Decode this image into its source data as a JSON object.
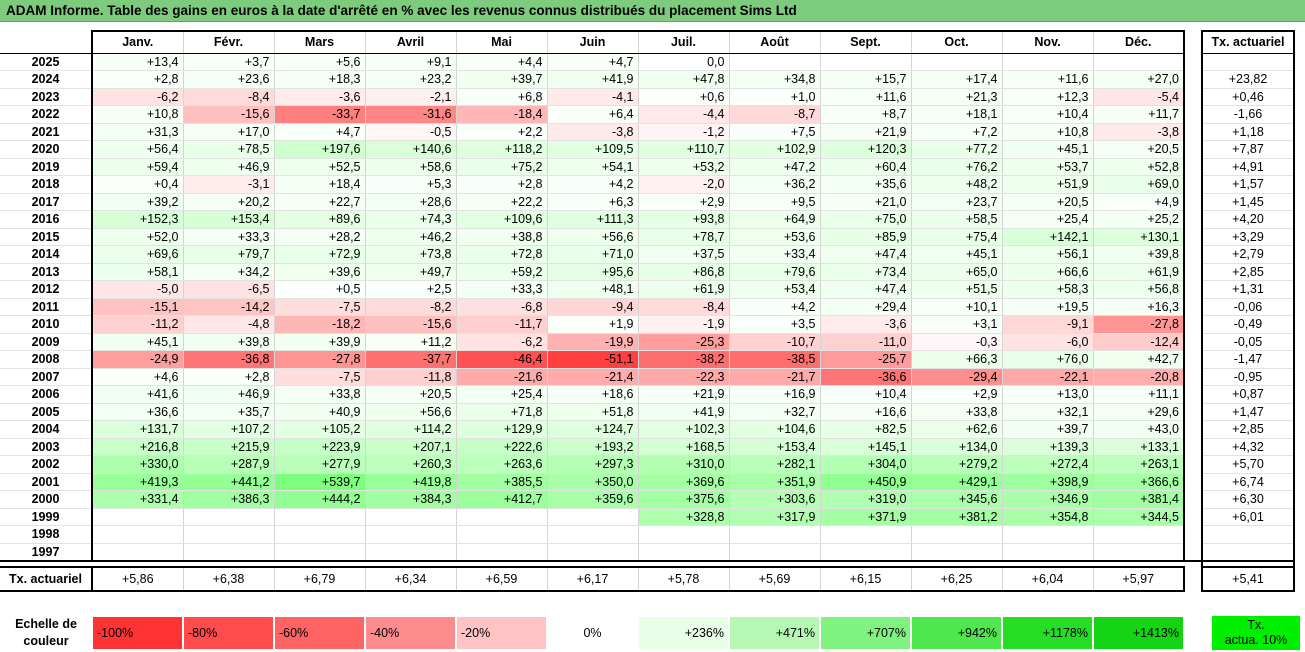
{
  "title": "ADAM Informe. Table des gains en euros à la date d'arrêté en % avec les revenus connus distribués du placement Sims Ltd",
  "months": [
    "Janv.",
    "Févr.",
    "Mars",
    "Avril",
    "Mai",
    "Juin",
    "Juil.",
    "Août",
    "Sept.",
    "Oct.",
    "Nov.",
    "Déc."
  ],
  "actuarial_header": "Tx. actuariel",
  "rows": [
    {
      "year": "2025",
      "values": [
        "+13,4",
        "+3,7",
        "+5,6",
        "+9,1",
        "+4,4",
        "+4,7",
        "0,0",
        "",
        "",
        "",
        "",
        ""
      ],
      "actuarial": ""
    },
    {
      "year": "2024",
      "values": [
        "+2,8",
        "+23,6",
        "+18,3",
        "+23,2",
        "+39,7",
        "+41,9",
        "+47,8",
        "+34,8",
        "+15,7",
        "+17,4",
        "+11,6",
        "+27,0"
      ],
      "actuarial": "+23,82"
    },
    {
      "year": "2023",
      "values": [
        "-6,2",
        "-8,4",
        "-3,6",
        "-2,1",
        "+6,8",
        "-4,1",
        "+0,6",
        "+1,0",
        "+11,6",
        "+21,3",
        "+12,3",
        "-5,4"
      ],
      "actuarial": "+0,46"
    },
    {
      "year": "2022",
      "values": [
        "+10,8",
        "-15,6",
        "-33,7",
        "-31,6",
        "-18,4",
        "+6,4",
        "-4,4",
        "-8,7",
        "+8,7",
        "+18,1",
        "+10,4",
        "+11,7"
      ],
      "actuarial": "-1,66"
    },
    {
      "year": "2021",
      "values": [
        "+31,3",
        "+17,0",
        "+4,7",
        "-0,5",
        "+2,2",
        "-3,8",
        "-1,2",
        "+7,5",
        "+21,9",
        "+7,2",
        "+10,8",
        "-3,8"
      ],
      "actuarial": "+1,18"
    },
    {
      "year": "2020",
      "values": [
        "+56,4",
        "+78,5",
        "+197,6",
        "+140,6",
        "+118,2",
        "+109,5",
        "+110,7",
        "+102,9",
        "+120,3",
        "+77,2",
        "+45,1",
        "+20,5"
      ],
      "actuarial": "+7,87"
    },
    {
      "year": "2019",
      "values": [
        "+59,4",
        "+46,9",
        "+52,5",
        "+58,6",
        "+75,2",
        "+54,1",
        "+53,2",
        "+47,2",
        "+60,4",
        "+76,2",
        "+53,7",
        "+52,8"
      ],
      "actuarial": "+4,91"
    },
    {
      "year": "2018",
      "values": [
        "+0,4",
        "-3,1",
        "+18,4",
        "+5,3",
        "+2,8",
        "+4,2",
        "-2,0",
        "+36,2",
        "+35,6",
        "+48,2",
        "+51,9",
        "+69,0"
      ],
      "actuarial": "+1,57"
    },
    {
      "year": "2017",
      "values": [
        "+39,2",
        "+20,2",
        "+22,7",
        "+28,6",
        "+22,2",
        "+6,3",
        "+2,9",
        "+9,5",
        "+21,0",
        "+23,7",
        "+20,5",
        "+4,9"
      ],
      "actuarial": "+1,45"
    },
    {
      "year": "2016",
      "values": [
        "+152,3",
        "+153,4",
        "+89,6",
        "+74,3",
        "+109,6",
        "+111,3",
        "+93,8",
        "+64,9",
        "+75,0",
        "+58,5",
        "+25,4",
        "+25,2"
      ],
      "actuarial": "+4,20"
    },
    {
      "year": "2015",
      "values": [
        "+52,0",
        "+33,3",
        "+28,2",
        "+46,2",
        "+38,8",
        "+56,6",
        "+78,7",
        "+53,6",
        "+85,9",
        "+75,4",
        "+142,1",
        "+130,1"
      ],
      "actuarial": "+3,29"
    },
    {
      "year": "2014",
      "values": [
        "+69,6",
        "+79,7",
        "+72,9",
        "+73,8",
        "+72,8",
        "+71,0",
        "+37,5",
        "+33,4",
        "+47,4",
        "+45,1",
        "+56,1",
        "+39,8"
      ],
      "actuarial": "+2,79"
    },
    {
      "year": "2013",
      "values": [
        "+58,1",
        "+34,2",
        "+39,6",
        "+49,7",
        "+59,2",
        "+95,6",
        "+86,8",
        "+79,6",
        "+73,4",
        "+65,0",
        "+66,6",
        "+61,9"
      ],
      "actuarial": "+2,85"
    },
    {
      "year": "2012",
      "values": [
        "-5,0",
        "-6,5",
        "+0,5",
        "+2,5",
        "+33,3",
        "+48,1",
        "+61,9",
        "+53,4",
        "+47,4",
        "+51,5",
        "+58,3",
        "+56,8"
      ],
      "actuarial": "+1,31"
    },
    {
      "year": "2011",
      "values": [
        "-15,1",
        "-14,2",
        "-7,5",
        "-8,2",
        "-6,8",
        "-9,4",
        "-8,4",
        "+4,2",
        "+29,4",
        "+10,1",
        "+19,5",
        "+16,3"
      ],
      "actuarial": "-0,06"
    },
    {
      "year": "2010",
      "values": [
        "-11,2",
        "-4,8",
        "-18,2",
        "-15,6",
        "-11,7",
        "+1,9",
        "-1,9",
        "+3,5",
        "-3,6",
        "+3,1",
        "-9,1",
        "-27,8"
      ],
      "actuarial": "-0,49"
    },
    {
      "year": "2009",
      "values": [
        "+45,1",
        "+39,8",
        "+39,9",
        "+11,2",
        "-6,2",
        "-19,9",
        "-25,3",
        "-10,7",
        "-11,0",
        "-0,3",
        "-6,0",
        "-12,4"
      ],
      "actuarial": "-0,05"
    },
    {
      "year": "2008",
      "values": [
        "-24,9",
        "-36,8",
        "-27,8",
        "-37,7",
        "-46,4",
        "-51,1",
        "-38,2",
        "-38,5",
        "-25,7",
        "+66,3",
        "+76,0",
        "+42,7"
      ],
      "actuarial": "-1,47"
    },
    {
      "year": "2007",
      "values": [
        "+4,6",
        "+2,8",
        "-7,5",
        "-11,8",
        "-21,6",
        "-21,4",
        "-22,3",
        "-21,7",
        "-36,6",
        "-29,4",
        "-22,1",
        "-20,8"
      ],
      "actuarial": "-0,95"
    },
    {
      "year": "2006",
      "values": [
        "+41,6",
        "+46,9",
        "+33,8",
        "+20,5",
        "+25,4",
        "+18,6",
        "+21,9",
        "+16,9",
        "+10,4",
        "+2,9",
        "+13,0",
        "+11,1"
      ],
      "actuarial": "+0,87"
    },
    {
      "year": "2005",
      "values": [
        "+36,6",
        "+35,7",
        "+40,9",
        "+56,6",
        "+71,8",
        "+51,8",
        "+41,9",
        "+32,7",
        "+16,6",
        "+33,8",
        "+32,1",
        "+29,6"
      ],
      "actuarial": "+1,47"
    },
    {
      "year": "2004",
      "values": [
        "+131,7",
        "+107,2",
        "+105,2",
        "+114,2",
        "+129,9",
        "+124,7",
        "+102,3",
        "+104,6",
        "+82,5",
        "+62,6",
        "+39,7",
        "+43,0"
      ],
      "actuarial": "+2,85"
    },
    {
      "year": "2003",
      "values": [
        "+216,8",
        "+215,9",
        "+223,9",
        "+207,1",
        "+222,6",
        "+193,2",
        "+168,5",
        "+153,4",
        "+145,1",
        "+134,0",
        "+139,3",
        "+133,1"
      ],
      "actuarial": "+4,32"
    },
    {
      "year": "2002",
      "values": [
        "+330,0",
        "+287,9",
        "+277,9",
        "+260,3",
        "+263,6",
        "+297,3",
        "+310,0",
        "+282,1",
        "+304,0",
        "+279,2",
        "+272,4",
        "+263,1"
      ],
      "actuarial": "+5,70"
    },
    {
      "year": "2001",
      "values": [
        "+419,3",
        "+441,2",
        "+539,7",
        "+419,8",
        "+385,5",
        "+350,0",
        "+369,6",
        "+351,9",
        "+450,9",
        "+429,1",
        "+398,9",
        "+366,6"
      ],
      "actuarial": "+6,74"
    },
    {
      "year": "2000",
      "values": [
        "+331,4",
        "+386,3",
        "+444,2",
        "+384,3",
        "+412,7",
        "+359,6",
        "+375,6",
        "+303,6",
        "+319,0",
        "+345,6",
        "+346,9",
        "+381,4"
      ],
      "actuarial": "+6,30"
    },
    {
      "year": "1999",
      "values": [
        "",
        "",
        "",
        "",
        "",
        "",
        "+328,8",
        "+317,9",
        "+371,9",
        "+381,2",
        "+354,8",
        "+344,5"
      ],
      "actuarial": "+6,01"
    },
    {
      "year": "1998",
      "values": [
        "",
        "",
        "",
        "",
        "",
        "",
        "",
        "",
        "",
        "",
        "",
        ""
      ],
      "actuarial": ""
    },
    {
      "year": "1997",
      "values": [
        "",
        "",
        "",
        "",
        "",
        "",
        "",
        "",
        "",
        "",
        "",
        ""
      ],
      "actuarial": ""
    }
  ],
  "summary": {
    "label": "Tx. actuariel",
    "values": [
      "+5,86",
      "+6,38",
      "+6,79",
      "+6,34",
      "+6,59",
      "+6,17",
      "+5,78",
      "+5,69",
      "+6,15",
      "+6,25",
      "+6,04",
      "+5,97"
    ],
    "actuarial": "+5,41"
  },
  "legend": {
    "label_line1": "Echelle de",
    "label_line2": "couleur",
    "cells": [
      {
        "text": "-100%",
        "color": "#ff3333",
        "kind": "neg"
      },
      {
        "text": "-80%",
        "color": "#ff4b4b",
        "kind": "neg"
      },
      {
        "text": "-60%",
        "color": "#ff6464",
        "kind": "neg"
      },
      {
        "text": "-40%",
        "color": "#ff8c8c",
        "kind": "neg"
      },
      {
        "text": "-20%",
        "color": "#ffc3c3",
        "kind": "neg"
      },
      {
        "text": "0%",
        "color": "#ffffff",
        "kind": "zero"
      },
      {
        "text": "+236%",
        "color": "#e6ffe6",
        "kind": "pos"
      },
      {
        "text": "+471%",
        "color": "#b4f8b4",
        "kind": "pos"
      },
      {
        "text": "+707%",
        "color": "#80f280",
        "kind": "pos"
      },
      {
        "text": "+942%",
        "color": "#4ee84e",
        "kind": "pos"
      },
      {
        "text": "+1178%",
        "color": "#26dd26",
        "kind": "pos"
      },
      {
        "text": "+1413%",
        "color": "#14d414",
        "kind": "pos"
      }
    ],
    "note_line1": "Tx.",
    "note_line2": "actua. 10%"
  }
}
